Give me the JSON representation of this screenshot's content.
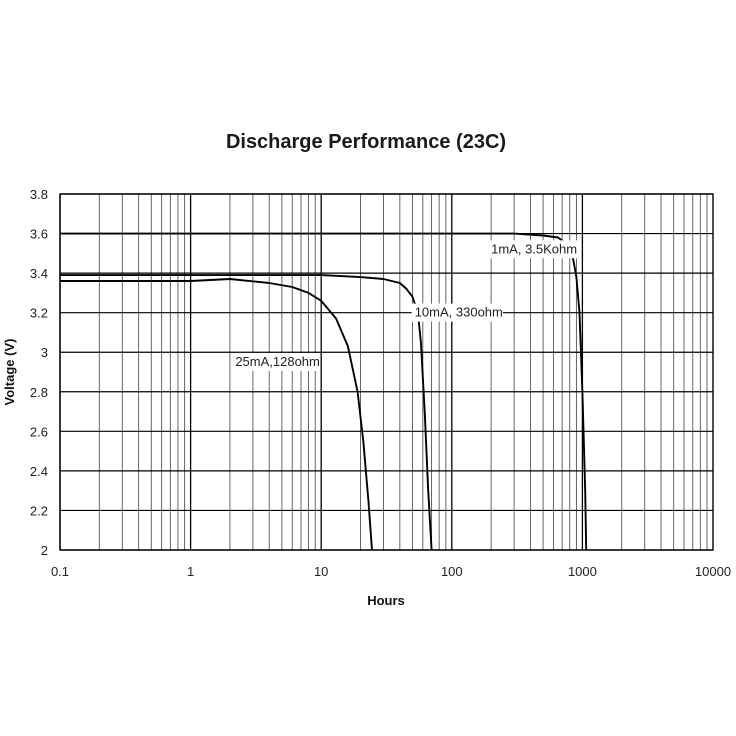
{
  "chart_data": {
    "type": "line",
    "title": "Discharge Performance (23C)",
    "xlabel": "Hours",
    "ylabel": "Voltage (V)",
    "xscale": "log",
    "xlim": [
      0.1,
      10000
    ],
    "ylim": [
      2,
      3.8
    ],
    "x_ticks": [
      "0.1",
      "1",
      "10",
      "100",
      "1000",
      "10000"
    ],
    "y_ticks": [
      "2",
      "2.2",
      "2.4",
      "2.6",
      "2.8",
      "3",
      "3.2",
      "3.4",
      "3.6",
      "3.8"
    ],
    "grid": true,
    "legend": "none",
    "annotations": [
      {
        "text": "1mA, 3.5Kohm",
        "x": 200,
        "y": 3.5
      },
      {
        "text": "10mA, 330ohm",
        "x": 52,
        "y": 3.18
      },
      {
        "text": "25mA,128ohm",
        "x": 2.2,
        "y": 2.93
      }
    ],
    "series": [
      {
        "x": [
          0.1,
          1,
          10,
          100,
          300,
          500,
          650,
          750,
          800,
          850,
          900,
          950,
          1000,
          1050,
          1070
        ],
        "y": [
          3.6,
          3.6,
          3.6,
          3.6,
          3.6,
          3.59,
          3.58,
          3.55,
          3.52,
          3.47,
          3.38,
          3.2,
          2.8,
          2.3,
          2.0
        ]
      },
      {
        "x": [
          0.1,
          1,
          10,
          20,
          30,
          40,
          45,
          50,
          55,
          58,
          62,
          66,
          70
        ],
        "y": [
          3.39,
          3.39,
          3.39,
          3.38,
          3.37,
          3.35,
          3.32,
          3.28,
          3.2,
          3.05,
          2.7,
          2.3,
          2.0
        ]
      },
      {
        "x": [
          0.1,
          1,
          2,
          4,
          6,
          8,
          10,
          13,
          16,
          19,
          21,
          23,
          24.5
        ],
        "y": [
          3.36,
          3.36,
          3.37,
          3.35,
          3.33,
          3.3,
          3.26,
          3.17,
          3.03,
          2.8,
          2.55,
          2.25,
          2.0
        ]
      }
    ]
  }
}
